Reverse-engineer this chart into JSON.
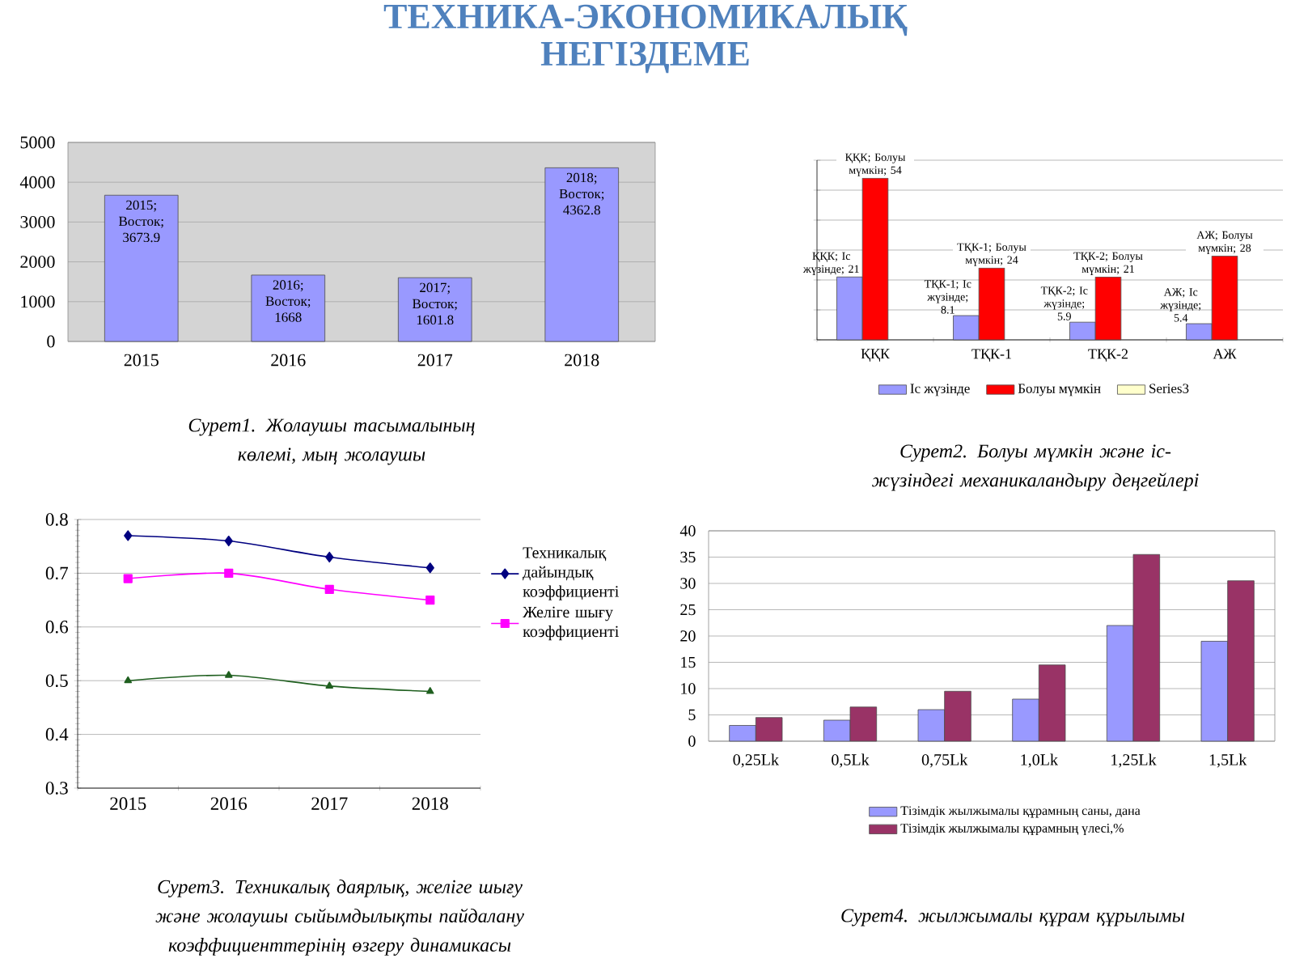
{
  "chart_data": [
    {
      "type": "other",
      "title": "ТЕХНИКА-ЭКОНОМИКАЛЫҚ НЕГІЗДЕМЕ"
    },
    {
      "type": "bar",
      "categories": [
        "2015",
        "2016",
        "2017",
        "2018"
      ],
      "series": [
        {
          "color": "#9999ff",
          "values": [
            3673.9,
            1668,
            1601.8,
            4362.8
          ],
          "value_labels": [
            "2015; Восток; 3673.9",
            "2016; Восток; 1668",
            "2017; Восток; 1601.8",
            "2018; Восток; 4362.8"
          ]
        }
      ],
      "ylim": [
        0,
        5000
      ],
      "yticks": [
        0,
        1000,
        2000,
        3000,
        4000,
        5000
      ],
      "grid": "y",
      "annotations": [
        "Сурет1. Жолаушы тасымалының көлемі, мың жолаушы"
      ]
    },
    {
      "type": "bar",
      "categories": [
        "ҚҚК",
        "ТҚК-1",
        "ТҚК-2",
        "АЖ"
      ],
      "series": [
        {
          "name": "Іс жүзінде",
          "color": "#9999ff",
          "values": [
            21,
            8.1,
            5.9,
            5.4
          ],
          "value_labels": [
            "ҚҚК; Іс жүзінде; 21",
            "ТҚК-1; Іс жүзінде; 8.1",
            "ТҚК-2; Іс жүзінде; 5.9",
            "АЖ; Іс жүзінде; 5.4"
          ]
        },
        {
          "name": "Болуы мүмкін",
          "color": "#ff0000",
          "values": [
            54,
            24,
            21,
            28
          ],
          "value_labels": [
            "ҚҚК; Болуы мүмкін; 54",
            "ТҚК-1; Болуы мүмкін; 24",
            "ТҚК-2; Болуы мүмкін; 21",
            "АЖ; Болуы мүмкін; 28"
          ]
        },
        {
          "name": "Series3",
          "color": "#ffffcc",
          "values": [
            null,
            null,
            null,
            null
          ]
        }
      ],
      "ylim": [
        0,
        60
      ],
      "yticks": [
        {
          "value": 0,
          "label": null
        },
        {
          "value": 10,
          "label": null
        },
        {
          "value": 20,
          "label": null
        },
        {
          "value": 30,
          "label": null
        },
        {
          "value": 40,
          "label": null
        },
        {
          "value": 50,
          "label": null
        },
        {
          "value": 60,
          "label": null
        }
      ],
      "tick_labels": "x",
      "grid": "y",
      "legend": "bottom",
      "annotations": [
        "Сурет2. Болуы мүмкін және іс-жүзіндегі механикаландыру деңгейлері"
      ]
    },
    {
      "type": "line",
      "categories": [
        "2015",
        "2016",
        "2017",
        "2018"
      ],
      "series": [
        {
          "name": "Техникалық дайындық коэффициенті",
          "color": "#000080",
          "marker": "diamond",
          "values": [
            0.77,
            0.76,
            0.73,
            0.71
          ]
        },
        {
          "name": "Желіге шығу коэффициенті",
          "color": "#ff00ff",
          "marker": "square",
          "values": [
            0.69,
            0.7,
            0.67,
            0.65
          ]
        },
        {
          "color": "#1f5f1f",
          "marker": "triangle",
          "values": [
            0.5,
            0.51,
            0.49,
            0.48
          ]
        }
      ],
      "ylim": [
        0.3,
        0.8
      ],
      "yticks": [
        0.3,
        0.4,
        0.5,
        0.6,
        0.7,
        0.8
      ],
      "grid": "y",
      "legend": "right",
      "annotations": [
        "Сурет3. Техникалық даярлық, желіге шығу және жолаушы сыйымдылықты пайдалану коэффициенттерінің өзгеру динамикасы"
      ]
    },
    {
      "type": "bar",
      "categories": [
        "0,25Lk",
        "0,5Lk",
        "0,75Lk",
        "1,0Lk",
        "1,25Lk",
        "1,5Lk"
      ],
      "series": [
        {
          "name": "Тізімдік жылжымалы құрамның саны, дана",
          "color": "#9999ff",
          "values": [
            3,
            4,
            6,
            8,
            22,
            19
          ]
        },
        {
          "name": "Тізімдік жылжымалы құрамның үлесі,%",
          "color": "#993366",
          "values": [
            4.5,
            6.5,
            9.5,
            14.5,
            35.5,
            30.5
          ]
        }
      ],
      "ylim": [
        0,
        40
      ],
      "yticks": [
        0,
        5,
        10,
        15,
        20,
        25,
        30,
        35,
        40
      ],
      "grid": "y",
      "legend": "bottom",
      "annotations": [
        "Сурет4. жылжымалы құрам құрылымы"
      ]
    }
  ]
}
